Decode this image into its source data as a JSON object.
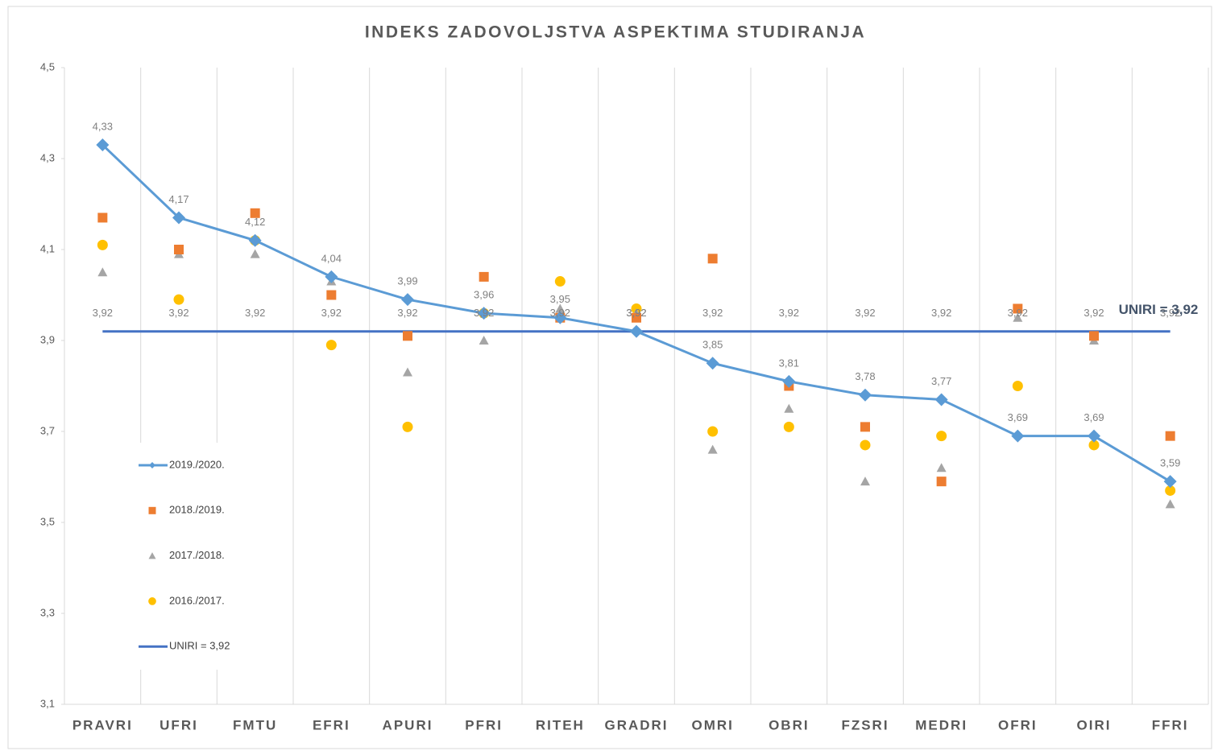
{
  "chart_data": {
    "type": "line",
    "title": "INDEKS ZADOVOLJSTVA ASPEKTIMA STUDIRANJA",
    "categories": [
      "PRAVRI",
      "UFRI",
      "FMTU",
      "EFRI",
      "APURI",
      "PFRI",
      "RITEH",
      "GRADRI",
      "OMRI",
      "OBRI",
      "FZSRI",
      "MEDRI",
      "OFRI",
      "OIRI",
      "FFRI"
    ],
    "series": [
      {
        "name": "2019./2020.",
        "color": "#5b9bd5",
        "marker": "diamond",
        "line": true,
        "values": [
          4.33,
          4.17,
          4.12,
          4.04,
          3.99,
          3.96,
          3.95,
          3.92,
          3.85,
          3.81,
          3.78,
          3.77,
          3.69,
          3.69,
          3.59
        ],
        "value_labels": [
          "4,33",
          "4,17",
          "4,12",
          "4,04",
          "3,99",
          "3,96",
          "3,95",
          "3,92",
          "3,85",
          "3,81",
          "3,78",
          "3,77",
          "3,69",
          "3,69",
          "3,59"
        ]
      },
      {
        "name": "2018./2019.",
        "color": "#ed7d31",
        "marker": "square",
        "line": false,
        "values": [
          4.17,
          4.1,
          4.18,
          4.0,
          3.91,
          4.04,
          3.95,
          3.95,
          4.08,
          3.8,
          3.71,
          3.59,
          3.97,
          3.91,
          3.69
        ]
      },
      {
        "name": "2017./2018.",
        "color": "#a5a5a5",
        "marker": "triangle",
        "line": false,
        "values": [
          4.05,
          4.09,
          4.09,
          4.03,
          3.83,
          3.9,
          3.97,
          3.96,
          3.66,
          3.75,
          3.59,
          3.62,
          3.95,
          3.9,
          3.54
        ]
      },
      {
        "name": "2016./2017.",
        "color": "#ffc000",
        "marker": "circle",
        "line": false,
        "values": [
          4.11,
          3.99,
          4.12,
          3.89,
          3.71,
          3.96,
          4.03,
          3.97,
          3.7,
          3.71,
          3.67,
          3.69,
          3.8,
          3.67,
          3.57
        ]
      },
      {
        "name": "UNIRI = 3,92",
        "color": "#4472c4",
        "marker": "none",
        "line": true,
        "values": [
          3.92,
          3.92,
          3.92,
          3.92,
          3.92,
          3.92,
          3.92,
          3.92,
          3.92,
          3.92,
          3.92,
          3.92,
          3.92,
          3.92,
          3.92
        ],
        "value_labels": [
          "3,92",
          "3,92",
          "3,92",
          "3,92",
          "3,92",
          "3,92",
          "3,92",
          "3,92",
          "3,92",
          "3,92",
          "3,92",
          "3,92",
          "3,92",
          "3,92",
          "3,92"
        ]
      }
    ],
    "ylim": [
      3.1,
      4.5
    ],
    "yticks": [
      {
        "value": 3.1,
        "label": "3,1"
      },
      {
        "value": 3.3,
        "label": "3,3"
      },
      {
        "value": 3.5,
        "label": "3,5"
      },
      {
        "value": 3.7,
        "label": "3,7"
      },
      {
        "value": 3.9,
        "label": "3,9"
      },
      {
        "value": 4.1,
        "label": "4,1"
      },
      {
        "value": 4.3,
        "label": "4,3"
      },
      {
        "value": 4.5,
        "label": "4,5"
      }
    ],
    "grid": "x",
    "legend": "left"
  }
}
